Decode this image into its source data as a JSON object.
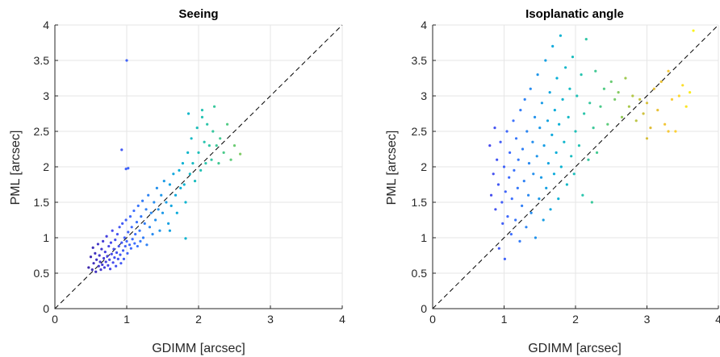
{
  "chart_data": [
    {
      "type": "scatter",
      "title": "Seeing",
      "xlabel": "GDIMM [arcsec]",
      "ylabel": "PML [arcsec]",
      "xlim": [
        0,
        4
      ],
      "ylim": [
        0,
        4
      ],
      "xticks": [
        "0",
        "1",
        "2",
        "3",
        "4"
      ],
      "yticks": [
        "0",
        "0.5",
        "1",
        "1.5",
        "2",
        "2.5",
        "3",
        "3.5",
        "4"
      ],
      "grid": true,
      "reference_line": {
        "style": "dashed",
        "from": [
          0,
          0
        ],
        "to": [
          4,
          4
        ]
      },
      "colormap": "parula (dark blue = low, yellow = high GDIMM)",
      "points": [
        [
          0.47,
          0.58
        ],
        [
          0.5,
          0.73
        ],
        [
          0.52,
          0.55
        ],
        [
          0.53,
          0.86
        ],
        [
          0.54,
          0.64
        ],
        [
          0.56,
          0.78
        ],
        [
          0.57,
          0.52
        ],
        [
          0.58,
          0.69
        ],
        [
          0.6,
          0.91
        ],
        [
          0.61,
          0.6
        ],
        [
          0.62,
          0.75
        ],
        [
          0.63,
          0.66
        ],
        [
          0.64,
          0.55
        ],
        [
          0.65,
          0.84
        ],
        [
          0.66,
          0.62
        ],
        [
          0.67,
          0.95
        ],
        [
          0.68,
          0.71
        ],
        [
          0.69,
          0.58
        ],
        [
          0.7,
          0.8
        ],
        [
          0.71,
          0.66
        ],
        [
          0.72,
          1.02
        ],
        [
          0.73,
          0.74
        ],
        [
          0.74,
          0.61
        ],
        [
          0.75,
          0.88
        ],
        [
          0.76,
          0.69
        ],
        [
          0.77,
          0.56
        ],
        [
          0.78,
          0.93
        ],
        [
          0.79,
          0.77
        ],
        [
          0.8,
          1.1
        ],
        [
          0.81,
          0.65
        ],
        [
          0.82,
          0.84
        ],
        [
          0.83,
          0.72
        ],
        [
          0.84,
          0.97
        ],
        [
          0.85,
          0.6
        ],
        [
          0.86,
          0.79
        ],
        [
          0.87,
          1.05
        ],
        [
          0.88,
          0.7
        ],
        [
          0.89,
          0.88
        ],
        [
          0.9,
          1.15
        ],
        [
          0.91,
          0.76
        ],
        [
          0.92,
          0.64
        ],
        [
          0.93,
          0.93
        ],
        [
          0.94,
          1.2
        ],
        [
          0.95,
          0.82
        ],
        [
          0.96,
          0.7
        ],
        [
          0.97,
          1.0
        ],
        [
          0.98,
          0.88
        ],
        [
          0.99,
          1.25
        ],
        [
          1.0,
          0.95
        ],
        [
          1.01,
          0.78
        ],
        [
          1.02,
          1.08
        ],
        [
          1.04,
          0.9
        ],
        [
          1.05,
          1.3
        ],
        [
          1.06,
          0.85
        ],
        [
          1.07,
          1.15
        ],
        [
          1.08,
          0.98
        ],
        [
          1.1,
          1.38
        ],
        [
          1.11,
          0.92
        ],
        [
          1.12,
          1.05
        ],
        [
          1.14,
          1.22
        ],
        [
          1.15,
          0.88
        ],
        [
          1.16,
          1.45
        ],
        [
          1.18,
          1.1
        ],
        [
          1.19,
          0.95
        ],
        [
          1.2,
          1.3
        ],
        [
          1.22,
          1.52
        ],
        [
          1.23,
          1.0
        ],
        [
          1.25,
          1.2
        ],
        [
          1.27,
          1.4
        ],
        [
          1.28,
          0.9
        ],
        [
          1.3,
          1.6
        ],
        [
          1.32,
          1.15
        ],
        [
          1.34,
          1.35
        ],
        [
          1.36,
          1.05
        ],
        [
          1.38,
          1.5
        ],
        [
          1.4,
          1.25
        ],
        [
          1.42,
          1.7
        ],
        [
          1.44,
          1.4
        ],
        [
          1.46,
          1.1
        ],
        [
          1.48,
          1.6
        ],
        [
          1.5,
          1.35
        ],
        [
          1.52,
          1.8
        ],
        [
          1.55,
          1.5
        ],
        [
          1.58,
          1.2
        ],
        [
          1.6,
          1.75
        ],
        [
          1.62,
          1.45
        ],
        [
          1.65,
          1.9
        ],
        [
          1.68,
          1.6
        ],
        [
          1.7,
          1.35
        ],
        [
          1.73,
          1.95
        ],
        [
          1.75,
          1.7
        ],
        [
          1.78,
          2.05
        ],
        [
          1.8,
          1.75
        ],
        [
          1.82,
          1.5
        ],
        [
          1.85,
          2.2
        ],
        [
          1.88,
          1.9
        ],
        [
          1.9,
          2.4
        ],
        [
          1.92,
          2.05
        ],
        [
          1.95,
          1.8
        ],
        [
          1.98,
          2.55
        ],
        [
          2.0,
          2.2
        ],
        [
          2.03,
          1.95
        ],
        [
          2.05,
          2.7
        ],
        [
          2.08,
          2.35
        ],
        [
          2.1,
          2.05
        ],
        [
          2.12,
          2.6
        ],
        [
          2.15,
          2.3
        ],
        [
          2.18,
          2.1
        ],
        [
          2.2,
          2.5
        ],
        [
          2.22,
          2.85
        ],
        [
          2.25,
          2.3
        ],
        [
          2.28,
          2.05
        ],
        [
          2.3,
          2.4
        ],
        [
          2.35,
          2.2
        ],
        [
          2.4,
          2.6
        ],
        [
          2.45,
          2.1
        ],
        [
          2.5,
          2.3
        ],
        [
          2.58,
          2.18
        ],
        [
          1.82,
          0.99
        ],
        [
          1.0,
          3.5
        ],
        [
          0.93,
          2.24
        ],
        [
          1.02,
          1.98
        ],
        [
          0.99,
          1.97
        ],
        [
          1.86,
          2.75
        ],
        [
          2.05,
          2.8
        ],
        [
          1.6,
          1.1
        ]
      ]
    },
    {
      "type": "scatter",
      "title": "Isoplanatic angle",
      "xlabel": "GDIMM [arcsec]",
      "ylabel": "PML [arcsec]",
      "xlim": [
        0,
        4
      ],
      "ylim": [
        0,
        4
      ],
      "xticks": [
        "0",
        "1",
        "2",
        "3",
        "4"
      ],
      "yticks": [
        "0",
        "0.5",
        "1",
        "1.5",
        "2",
        "2.5",
        "3",
        "3.5",
        "4"
      ],
      "grid": true,
      "reference_line": {
        "style": "dashed",
        "from": [
          0,
          0
        ],
        "to": [
          4,
          4
        ]
      },
      "colormap": "parula (dark blue = low, yellow = high GDIMM)",
      "points": [
        [
          0.8,
          2.3
        ],
        [
          0.82,
          1.6
        ],
        [
          0.85,
          1.9
        ],
        [
          0.87,
          2.55
        ],
        [
          0.88,
          1.4
        ],
        [
          0.9,
          2.1
        ],
        [
          0.92,
          1.75
        ],
        [
          0.93,
          0.85
        ],
        [
          0.95,
          2.35
        ],
        [
          0.97,
          1.5
        ],
        [
          0.98,
          1.2
        ],
        [
          1.0,
          2.0
        ],
        [
          1.01,
          0.7
        ],
        [
          1.02,
          1.65
        ],
        [
          1.04,
          2.5
        ],
        [
          1.05,
          1.3
        ],
        [
          1.07,
          1.85
        ],
        [
          1.08,
          2.2
        ],
        [
          1.1,
          1.05
        ],
        [
          1.11,
          1.55
        ],
        [
          1.13,
          2.65
        ],
        [
          1.14,
          1.95
        ],
        [
          1.16,
          1.25
        ],
        [
          1.17,
          2.4
        ],
        [
          1.19,
          1.7
        ],
        [
          1.2,
          2.1
        ],
        [
          1.22,
          0.95
        ],
        [
          1.23,
          2.8
        ],
        [
          1.25,
          1.45
        ],
        [
          1.26,
          2.25
        ],
        [
          1.28,
          1.8
        ],
        [
          1.29,
          2.95
        ],
        [
          1.31,
          1.15
        ],
        [
          1.32,
          2.5
        ],
        [
          1.34,
          1.6
        ],
        [
          1.35,
          2.05
        ],
        [
          1.37,
          3.1
        ],
        [
          1.38,
          1.35
        ],
        [
          1.4,
          2.35
        ],
        [
          1.41,
          1.9
        ],
        [
          1.43,
          2.7
        ],
        [
          1.44,
          1.0
        ],
        [
          1.46,
          2.15
        ],
        [
          1.47,
          3.3
        ],
        [
          1.49,
          1.55
        ],
        [
          1.5,
          2.55
        ],
        [
          1.52,
          1.85
        ],
        [
          1.53,
          2.9
        ],
        [
          1.55,
          1.25
        ],
        [
          1.56,
          2.3
        ],
        [
          1.58,
          3.5
        ],
        [
          1.59,
          1.7
        ],
        [
          1.61,
          2.65
        ],
        [
          1.62,
          2.05
        ],
        [
          1.64,
          3.05
        ],
        [
          1.65,
          1.4
        ],
        [
          1.67,
          2.45
        ],
        [
          1.68,
          3.7
        ],
        [
          1.7,
          1.9
        ],
        [
          1.71,
          2.8
        ],
        [
          1.73,
          2.2
        ],
        [
          1.74,
          3.25
        ],
        [
          1.76,
          1.55
        ],
        [
          1.77,
          2.6
        ],
        [
          1.79,
          3.85
        ],
        [
          1.8,
          2.0
        ],
        [
          1.82,
          2.95
        ],
        [
          1.84,
          2.35
        ],
        [
          1.86,
          3.4
        ],
        [
          1.88,
          1.75
        ],
        [
          1.9,
          2.7
        ],
        [
          1.92,
          3.1
        ],
        [
          1.94,
          2.15
        ],
        [
          1.96,
          3.55
        ],
        [
          1.98,
          1.9
        ],
        [
          2.0,
          2.5
        ],
        [
          2.02,
          3.0
        ],
        [
          2.05,
          2.3
        ],
        [
          2.08,
          3.3
        ],
        [
          2.1,
          1.6
        ],
        [
          2.12,
          2.75
        ],
        [
          2.15,
          3.8
        ],
        [
          2.18,
          2.1
        ],
        [
          2.2,
          2.9
        ],
        [
          2.23,
          1.5
        ],
        [
          2.25,
          2.55
        ],
        [
          2.28,
          3.35
        ],
        [
          2.3,
          2.2
        ],
        [
          2.35,
          2.85
        ],
        [
          2.4,
          3.1
        ],
        [
          2.45,
          2.6
        ],
        [
          2.5,
          3.2
        ],
        [
          2.55,
          2.95
        ],
        [
          2.6,
          3.05
        ],
        [
          2.65,
          2.7
        ],
        [
          2.7,
          3.25
        ],
        [
          2.75,
          2.85
        ],
        [
          2.8,
          3.0
        ],
        [
          2.85,
          2.65
        ],
        [
          2.9,
          2.95
        ],
        [
          2.95,
          2.75
        ],
        [
          3.0,
          2.9
        ],
        [
          3.05,
          2.55
        ],
        [
          3.1,
          3.1
        ],
        [
          3.15,
          2.8
        ],
        [
          3.2,
          3.2
        ],
        [
          3.25,
          2.6
        ],
        [
          3.3,
          3.35
        ],
        [
          3.35,
          2.95
        ],
        [
          3.4,
          2.5
        ],
        [
          3.45,
          3.0
        ],
        [
          3.5,
          3.15
        ],
        [
          3.55,
          2.85
        ],
        [
          3.6,
          3.05
        ],
        [
          3.65,
          3.92
        ],
        [
          3.0,
          2.4
        ],
        [
          3.3,
          2.5
        ]
      ]
    }
  ]
}
